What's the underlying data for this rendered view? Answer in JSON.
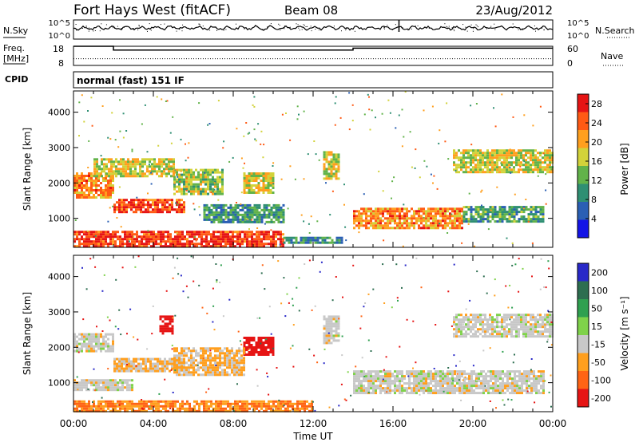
{
  "header": {
    "station": "Fort Hays West (fitACF)",
    "beam": "Beam 08",
    "date": "23/Aug/2012"
  },
  "labels": {
    "nsky": "N.Sky",
    "nsearch": "N.Search",
    "freq_line1": "Freq.",
    "freq_line2": "[MHz]",
    "nave": "Nave",
    "cpid": "CPID",
    "cpid_value": "normal (fast) 151 IF",
    "x_axis": "Time UT",
    "y_axis": "Slant Range [km]",
    "power_colorbar": "Power [dB]",
    "velocity_colorbar": "Velocity [m s⁻¹]"
  },
  "noise_panel": {
    "left_ticks": [
      "10^5",
      "10^0"
    ],
    "right_ticks": [
      "10^5",
      "10^0"
    ]
  },
  "freq_panel": {
    "left_ticks": [
      "18",
      "8"
    ],
    "right_ticks": [
      "60",
      "0"
    ],
    "ylim": [
      8,
      18
    ],
    "freq_steps": [
      {
        "t": 0,
        "mhz": 18
      },
      {
        "t": 2.0,
        "mhz": 16
      },
      {
        "t": 14.0,
        "mhz": 17
      },
      {
        "t": 24,
        "mhz": 17
      }
    ],
    "nave_value": 21
  },
  "chart_data": [
    {
      "type": "heatmap",
      "name": "Power",
      "xlabel": "Time UT",
      "ylabel": "Slant Range [km]",
      "xlim": [
        0,
        24
      ],
      "ylim": [
        180,
        4600
      ],
      "x_ticks": [
        "00:00",
        "04:00",
        "08:00",
        "12:00",
        "16:00",
        "20:00",
        "00:00"
      ],
      "y_ticks": [
        1000,
        2000,
        3000,
        4000
      ],
      "colorbar": {
        "label": "Power [dB]",
        "ticks": [
          4,
          8,
          12,
          16,
          20,
          24,
          28
        ],
        "range": [
          0,
          30
        ],
        "colors": [
          "#1414e6",
          "#2a5fb4",
          "#2f8f73",
          "#62b34a",
          "#d2d23a",
          "#ff9f1e",
          "#ff5a14",
          "#e61414"
        ]
      },
      "regions": [
        {
          "t0": 0,
          "t1": 2.0,
          "r0": 1600,
          "r1": 2300,
          "power": 22
        },
        {
          "t0": 2.0,
          "t1": 5.5,
          "r0": 1150,
          "r1": 1550,
          "power": 26
        },
        {
          "t0": 1.0,
          "t1": 5.0,
          "r0": 2200,
          "r1": 2700,
          "power": 17
        },
        {
          "t0": 5.0,
          "t1": 7.5,
          "r0": 1700,
          "r1": 2400,
          "power": 15
        },
        {
          "t0": 6.5,
          "t1": 10.5,
          "r0": 900,
          "r1": 1400,
          "power": 10
        },
        {
          "t0": 8.5,
          "t1": 10.0,
          "r0": 1700,
          "r1": 2300,
          "power": 17
        },
        {
          "t0": 0,
          "t1": 10.5,
          "r0": 200,
          "r1": 650,
          "power": 27
        },
        {
          "t0": 10.5,
          "t1": 13.5,
          "r0": 300,
          "r1": 480,
          "power": 9
        },
        {
          "t0": 12.5,
          "t1": 13.3,
          "r0": 2100,
          "r1": 2900,
          "power": 17
        },
        {
          "t0": 14.0,
          "t1": 19.5,
          "r0": 700,
          "r1": 1300,
          "power": 22
        },
        {
          "t0": 19.5,
          "t1": 23.5,
          "r0": 900,
          "r1": 1350,
          "power": 11
        },
        {
          "t0": 19.0,
          "t1": 24,
          "r0": 2300,
          "r1": 2950,
          "power": 17
        }
      ]
    },
    {
      "type": "heatmap",
      "name": "Velocity",
      "xlabel": "Time UT",
      "ylabel": "Slant Range [km]",
      "xlim": [
        0,
        24
      ],
      "ylim": [
        180,
        4600
      ],
      "x_ticks": [
        "00:00",
        "04:00",
        "08:00",
        "12:00",
        "16:00",
        "20:00",
        "00:00"
      ],
      "y_ticks": [
        1000,
        2000,
        3000,
        4000
      ],
      "colorbar": {
        "label": "Velocity [m s⁻¹]",
        "ticks": [
          200,
          100,
          50,
          15,
          -15,
          -50,
          -100,
          -200
        ],
        "colors": [
          "#2828c8",
          "#2d6e50",
          "#2fa050",
          "#7fd24a",
          "#c8c8c8",
          "#ff9f1e",
          "#ff6414",
          "#e61414"
        ]
      },
      "regions": [
        {
          "t0": 0,
          "t1": 2.0,
          "r0": 1900,
          "r1": 2400,
          "velocity": 0
        },
        {
          "t0": 2.0,
          "t1": 5.5,
          "r0": 1300,
          "r1": 1700,
          "velocity": -20
        },
        {
          "t0": 0,
          "t1": 3.0,
          "r0": 800,
          "r1": 1100,
          "velocity": 0
        },
        {
          "t0": 4.3,
          "t1": 5.0,
          "r0": 2400,
          "r1": 2900,
          "velocity": -200
        },
        {
          "t0": 8.5,
          "t1": 10.0,
          "r0": 1800,
          "r1": 2300,
          "velocity": -200
        },
        {
          "t0": 5.0,
          "t1": 8.5,
          "r0": 1200,
          "r1": 2000,
          "velocity": -20
        },
        {
          "t0": 0,
          "t1": 12.0,
          "r0": 200,
          "r1": 500,
          "velocity": -50
        },
        {
          "t0": 12.5,
          "t1": 13.3,
          "r0": 2100,
          "r1": 2900,
          "velocity": 0
        },
        {
          "t0": 14.0,
          "t1": 23.5,
          "r0": 700,
          "r1": 1350,
          "velocity": 0
        },
        {
          "t0": 19.0,
          "t1": 24,
          "r0": 2300,
          "r1": 2950,
          "velocity": 0
        }
      ]
    }
  ]
}
